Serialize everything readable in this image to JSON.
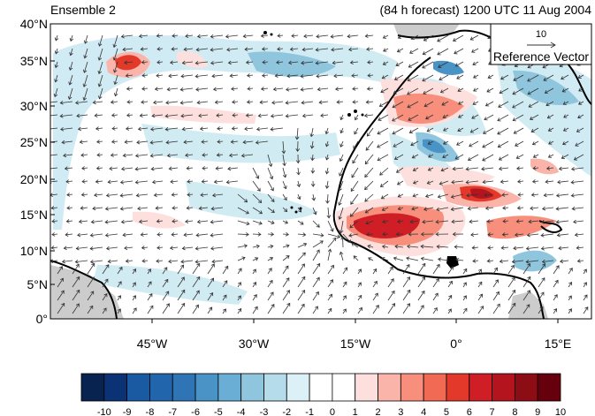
{
  "title_left": "Ensemble 2",
  "title_right": "(84 h forecast) 1200 UTC 11 Aug 2004",
  "lat_labels": [
    "40°N",
    "35°N",
    "30°N",
    "25°N",
    "20°N",
    "15°N",
    "10°N",
    "5°N",
    "0°"
  ],
  "lon_labels": [
    "45°W",
    "30°W",
    "15°W",
    "0°",
    "15°E"
  ],
  "reference_vector": {
    "magnitude": "10",
    "label": "Reference Vector"
  },
  "colorbar": {
    "labels": [
      "-10",
      "-9",
      "-8",
      "-7",
      "-6",
      "-5",
      "-4",
      "-3",
      "-2",
      "-1",
      "0",
      "1",
      "2",
      "3",
      "4",
      "5",
      "6",
      "7",
      "8",
      "9",
      "10"
    ],
    "colors": [
      "#08234f",
      "#0b3275",
      "#1a5aa3",
      "#2166ac",
      "#2f74b5",
      "#4a93c6",
      "#6aaed6",
      "#8fc6de",
      "#b5dcea",
      "#dcf0f8",
      "#ffffff",
      "#ffffff",
      "#fde0dd",
      "#fbb4a9",
      "#f88f7c",
      "#f16a54",
      "#e3392a",
      "#cf1e26",
      "#b4141e",
      "#8c0d14",
      "#67000d"
    ]
  },
  "colors": {
    "land_grey": "#cccccc",
    "coast": "#000000",
    "arrow": "#333333"
  }
}
